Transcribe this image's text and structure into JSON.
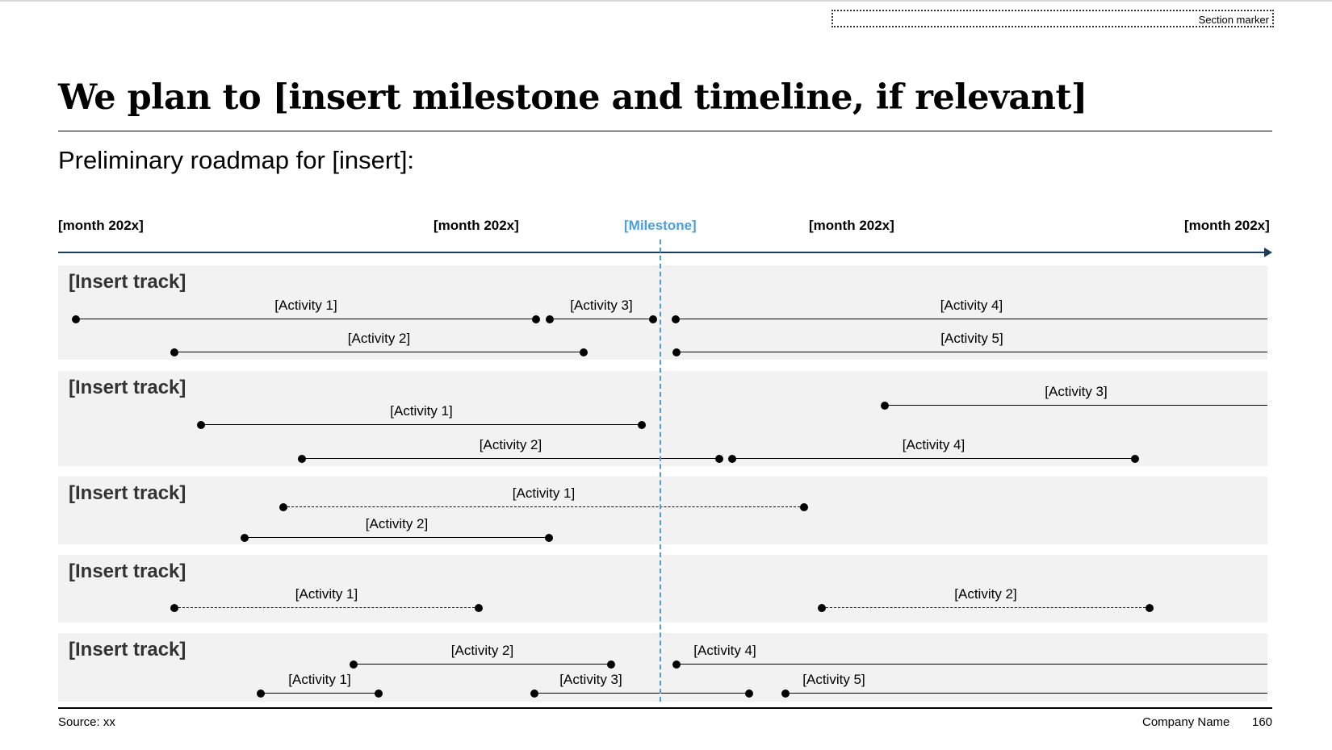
{
  "section_marker": "Section marker",
  "title": "We plan to [insert milestone and timeline, if relevant]",
  "subtitle": "Preliminary roadmap for [insert]:",
  "timeline": {
    "months": [
      "[month 202x]",
      "[month 202x]",
      "[month 202x]",
      "[month 202x]"
    ],
    "milestone": "[Milestone]"
  },
  "tracks": [
    {
      "label": "[Insert track]",
      "activities": [
        {
          "label": "[Activity 1]",
          "style": "solid",
          "end_cap": "dot"
        },
        {
          "label": "[Activity 3]",
          "style": "solid",
          "end_cap": "dot"
        },
        {
          "label": "[Activity 4]",
          "style": "solid",
          "end_cap": "open"
        },
        {
          "label": "[Activity 2]",
          "style": "solid",
          "end_cap": "dot"
        },
        {
          "label": "[Activity 5]",
          "style": "solid",
          "end_cap": "open"
        }
      ]
    },
    {
      "label": "[Insert track]",
      "activities": [
        {
          "label": "[Activity 3]",
          "style": "solid",
          "end_cap": "open"
        },
        {
          "label": "[Activity 1]",
          "style": "solid",
          "end_cap": "dot"
        },
        {
          "label": "[Activity 2]",
          "style": "solid",
          "end_cap": "dot"
        },
        {
          "label": "[Activity 4]",
          "style": "solid",
          "end_cap": "dot"
        }
      ]
    },
    {
      "label": "[Insert track]",
      "activities": [
        {
          "label": "[Activity 1]",
          "style": "dashed",
          "end_cap": "dot"
        },
        {
          "label": "[Activity 2]",
          "style": "solid",
          "end_cap": "dot"
        }
      ]
    },
    {
      "label": "[Insert track]",
      "activities": [
        {
          "label": "[Activity 1]",
          "style": "dashed",
          "end_cap": "dot"
        },
        {
          "label": "[Activity 2]",
          "style": "dashed",
          "end_cap": "dot"
        }
      ]
    },
    {
      "label": "[Insert track]",
      "activities": [
        {
          "label": "[Activity 2]",
          "style": "solid",
          "end_cap": "dot"
        },
        {
          "label": "[Activity 4]",
          "style": "solid",
          "end_cap": "open"
        },
        {
          "label": "[Activity 1]",
          "style": "solid",
          "end_cap": "dot"
        },
        {
          "label": "[Activity 3]",
          "style": "solid",
          "end_cap": "dot"
        },
        {
          "label": "[Activity 5]",
          "style": "solid",
          "end_cap": "open"
        }
      ]
    }
  ],
  "footer": {
    "source": "Source: xx",
    "company": "Company Name",
    "page": "160"
  },
  "colors": {
    "milestone": "#4a9fdc",
    "track_background": "#f2f2f2",
    "axis": "#1f3a55"
  }
}
